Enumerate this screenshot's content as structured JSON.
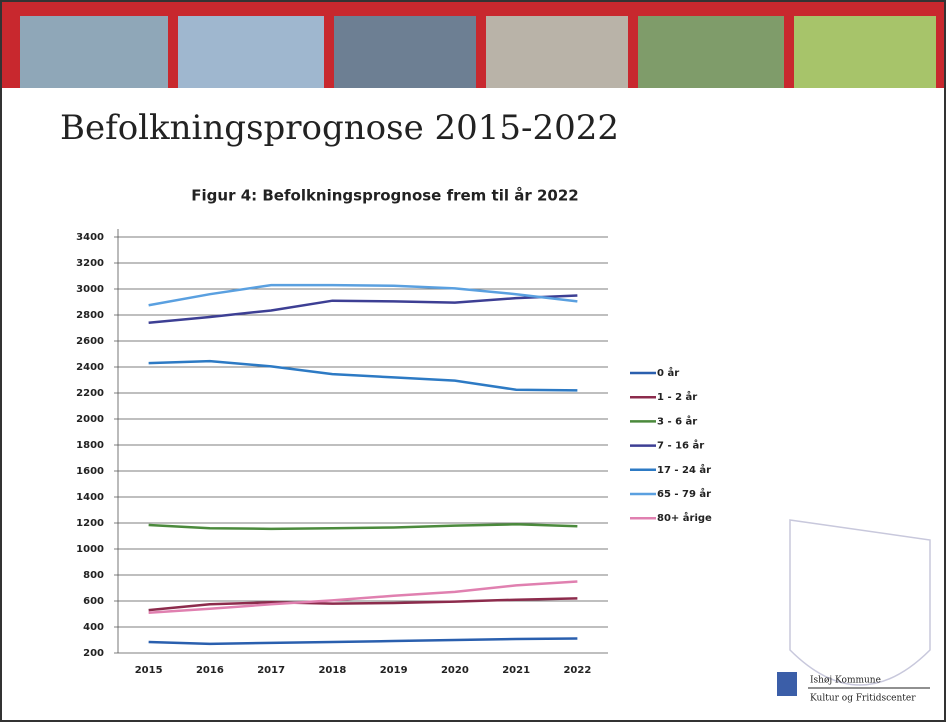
{
  "slide_title": "Befolkningsprognose 2015-2022",
  "logo": {
    "line1": "Ishøj Kommune",
    "line2": "Kultur og Fritidscenter"
  },
  "chart_data": {
    "type": "line",
    "title": "Figur 4: Befolkningsprognose frem til år 2022",
    "categories": [
      "2015",
      "2016",
      "2017",
      "2018",
      "2019",
      "2020",
      "2021",
      "2022"
    ],
    "ylim": [
      200,
      3400
    ],
    "yticks": [
      200,
      400,
      600,
      800,
      1000,
      1200,
      1400,
      1600,
      1800,
      2000,
      2200,
      2400,
      2600,
      2800,
      3000,
      3200,
      3400
    ],
    "grid": true,
    "legend": "right",
    "series": [
      {
        "name": "0 år",
        "color": "#2a5fae",
        "values": [
          285,
          270,
          278,
          285,
          292,
          300,
          308,
          312
        ]
      },
      {
        "name": "1 - 2 år",
        "color": "#8c2b4c",
        "values": [
          530,
          575,
          590,
          580,
          585,
          595,
          610,
          620
        ]
      },
      {
        "name": "3 - 6 år",
        "color": "#4b8a3c",
        "values": [
          1185,
          1160,
          1155,
          1160,
          1165,
          1180,
          1190,
          1175
        ]
      },
      {
        "name": "7 - 16 år",
        "color": "#3d3f94",
        "values": [
          2740,
          2785,
          2835,
          2910,
          2905,
          2895,
          2930,
          2950
        ]
      },
      {
        "name": "17 - 24 år",
        "color": "#2d7ac4",
        "values": [
          2430,
          2445,
          2405,
          2345,
          2320,
          2295,
          2225,
          2220
        ]
      },
      {
        "name": "65 - 79 år",
        "color": "#5aa0e0",
        "values": [
          2875,
          2960,
          3030,
          3030,
          3025,
          3005,
          2960,
          2905
        ]
      },
      {
        "name": "80+ årige",
        "color": "#e080b0",
        "values": [
          510,
          540,
          575,
          605,
          640,
          670,
          720,
          750
        ]
      }
    ]
  }
}
